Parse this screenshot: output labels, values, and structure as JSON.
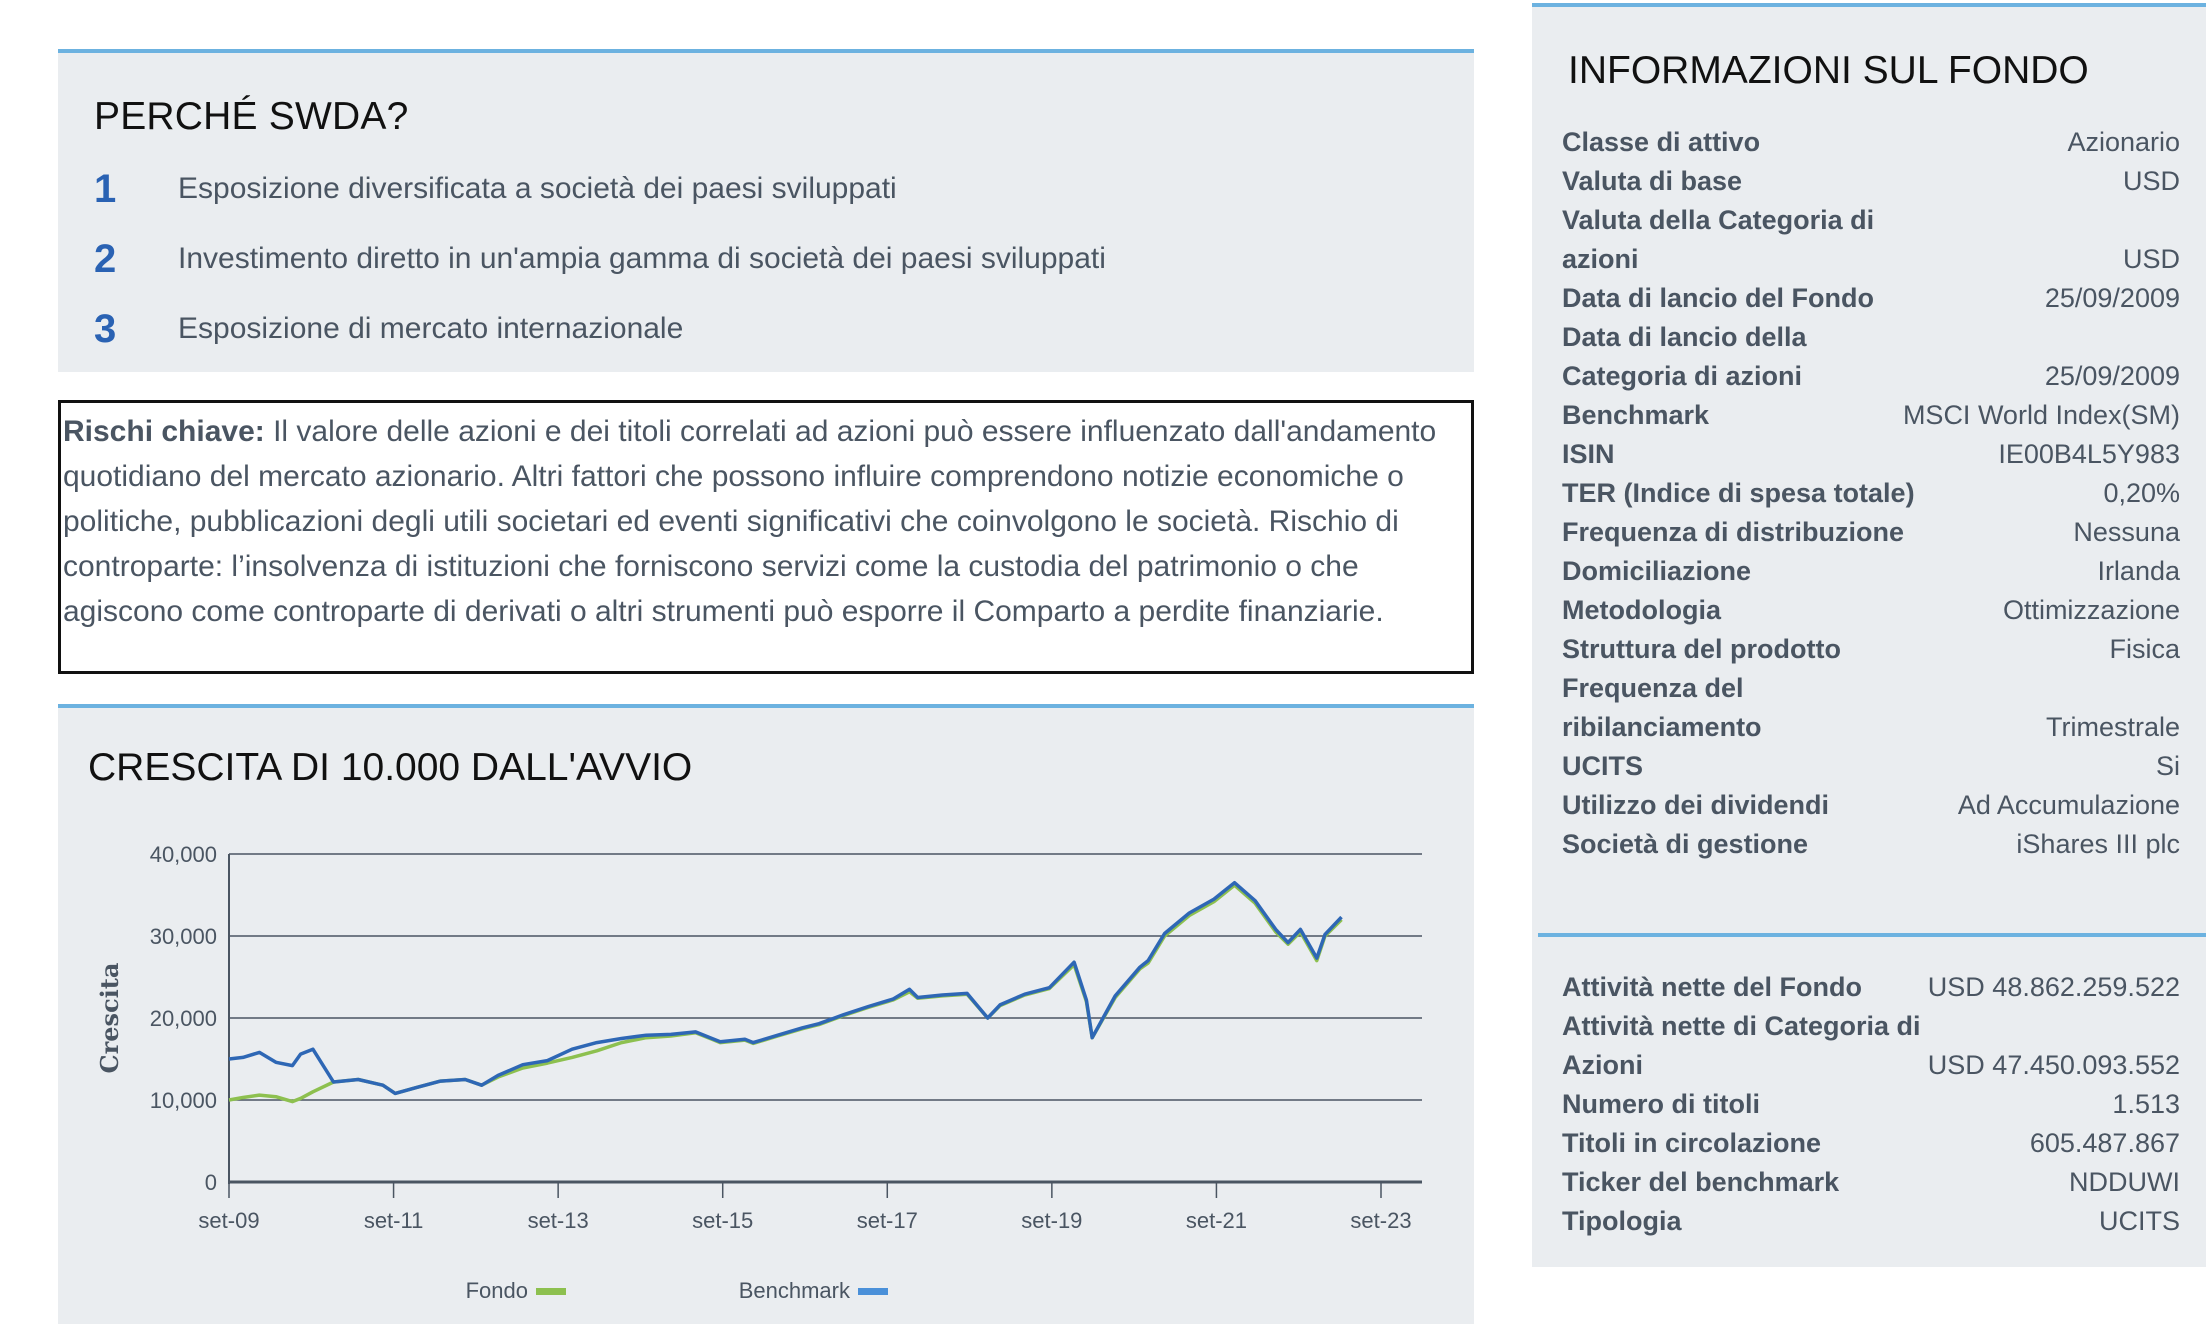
{
  "why": {
    "title": "PERCHÉ SWDA?",
    "items": [
      {
        "num": "1",
        "text": "Esposizione diversificata a società dei paesi sviluppati"
      },
      {
        "num": "2",
        "text": "Investimento diretto in un'ampia gamma di società dei paesi sviluppati"
      },
      {
        "num": "3",
        "text": "Esposizione di mercato internazionale"
      }
    ]
  },
  "risk": {
    "label": "Rischi chiave:",
    "text": " Il valore delle azioni e dei titoli correlati ad azioni può essere influenzato dall'andamento quotidiano del mercato azionario. Altri fattori che possono influire comprendono notizie economiche o politiche, pubblicazioni degli utili societari ed eventi significativi che coinvolgono le società. Rischio di controparte: l’insolvenza di istituzioni che forniscono servizi come la custodia del patrimonio o che agiscono come controparte di derivati o altri strumenti può esporre il Comparto a perdite finanziarie."
  },
  "growth": {
    "title": "CRESCITA DI 10.000 DALL'AVVIO"
  },
  "chart_data": {
    "type": "line",
    "title": "CRESCITA DI 10.000 DALL'AVVIO",
    "xlabel": "",
    "ylabel": "Crescita",
    "ylim": [
      0,
      40000
    ],
    "yticks": [
      "0",
      "10,000",
      "20,000",
      "30,000",
      "40,000"
    ],
    "xticks": [
      "set-09",
      "set-11",
      "set-13",
      "set-15",
      "set-17",
      "set-19",
      "set-21",
      "set-23"
    ],
    "grid": true,
    "legend_position": "bottom",
    "colors": {
      "Fondo": "#8dc04f",
      "Benchmark": "#2e67b5",
      "Benchmark_legend": "#4a90d9"
    },
    "x": [
      2009.73,
      2009.9,
      2010.1,
      2010.3,
      2010.5,
      2010.6,
      2010.75,
      2011.0,
      2011.3,
      2011.6,
      2011.75,
      2012.0,
      2012.3,
      2012.6,
      2012.8,
      2013.0,
      2013.3,
      2013.6,
      2013.9,
      2014.2,
      2014.5,
      2014.8,
      2015.1,
      2015.4,
      2015.6,
      2015.7,
      2016.0,
      2016.1,
      2016.4,
      2016.7,
      2016.9,
      2017.2,
      2017.5,
      2017.8,
      2018.0,
      2018.1,
      2018.4,
      2018.7,
      2018.95,
      2019.1,
      2019.4,
      2019.7,
      2020.0,
      2020.15,
      2020.22,
      2020.5,
      2020.8,
      2020.9,
      2021.1,
      2021.4,
      2021.7,
      2021.95,
      2022.2,
      2022.45,
      2022.6,
      2022.75,
      2022.95,
      2023.05,
      2023.25
    ],
    "series": [
      {
        "name": "Fondo",
        "values": [
          10000,
          10300,
          10600,
          10400,
          9800,
          10200,
          11000,
          12200,
          12500,
          11800,
          10800,
          11500,
          12300,
          12500,
          11800,
          12800,
          13900,
          14500,
          15200,
          16000,
          17000,
          17600,
          17800,
          18200,
          17400,
          17000,
          17300,
          16900,
          17800,
          18700,
          19200,
          20300,
          21300,
          22200,
          23200,
          22400,
          22700,
          22900,
          20000,
          21500,
          22800,
          23600,
          26500,
          22000,
          17600,
          22500,
          26000,
          26700,
          30000,
          32500,
          34200,
          36200,
          34000,
          30500,
          29000,
          30500,
          27000,
          30000,
          32000
        ]
      },
      {
        "name": "Benchmark",
        "values": [
          15000,
          15200,
          15800,
          14600,
          14200,
          15600,
          16200,
          12200,
          12500,
          11800,
          10800,
          11500,
          12300,
          12500,
          11800,
          13000,
          14300,
          14800,
          16200,
          17000,
          17500,
          17900,
          18000,
          18300,
          17500,
          17100,
          17400,
          17000,
          17900,
          18800,
          19300,
          20400,
          21400,
          22300,
          23500,
          22500,
          22800,
          23000,
          20000,
          21600,
          22900,
          23700,
          26800,
          22200,
          17600,
          22700,
          26200,
          27000,
          30300,
          32800,
          34500,
          36500,
          34300,
          30800,
          29200,
          30800,
          27300,
          30200,
          32300
        ]
      }
    ]
  },
  "chart": {
    "ylabel": "Crescita",
    "yticks": [
      "0",
      "10,000",
      "20,000",
      "30,000",
      "40,000"
    ],
    "xticks": [
      "set-09",
      "set-11",
      "set-13",
      "set-15",
      "set-17",
      "set-19",
      "set-21",
      "set-23"
    ],
    "legend": [
      {
        "label": "Fondo",
        "color": "#8dc04f"
      },
      {
        "label": "Benchmark",
        "color": "#4a90d9"
      }
    ]
  },
  "info": {
    "title": "INFORMAZIONI SUL FONDO",
    "facts": [
      {
        "label": "Classe di attivo",
        "value": "Azionario"
      },
      {
        "label": "Valuta di base",
        "value": "USD"
      },
      {
        "label": "Valuta della Categoria di azioni",
        "value": "USD"
      },
      {
        "label": "Data di lancio del Fondo",
        "value": "25/09/2009"
      },
      {
        "label": "Data di lancio della Categoria di azioni",
        "value": "25/09/2009"
      },
      {
        "label": "Benchmark",
        "value": "MSCI World Index(SM)"
      },
      {
        "label": "ISIN",
        "value": "IE00B4L5Y983"
      },
      {
        "label": "TER (Indice di spesa totale)",
        "value": "0,20%"
      },
      {
        "label": "Frequenza di distribuzione",
        "value": "Nessuna"
      },
      {
        "label": "Domiciliazione",
        "value": "Irlanda"
      },
      {
        "label": "Metodologia",
        "value": "Ottimizzazione"
      },
      {
        "label": "Struttura del prodotto",
        "value": "Fisica"
      },
      {
        "label": "Frequenza del ribilanciamento",
        "value": "Trimestrale"
      },
      {
        "label": "UCITS",
        "value": "Si"
      },
      {
        "label": "Utilizzo dei dividendi",
        "value": "Ad Accumulazione"
      },
      {
        "label": "Società di gestione",
        "value": "iShares III plc"
      }
    ],
    "facts2": [
      {
        "label": "Attività nette del Fondo",
        "value": "USD 48.862.259.522"
      },
      {
        "label": "Attività nette di Categoria di Azioni",
        "value": "USD 47.450.093.552"
      },
      {
        "label": "Numero di titoli",
        "value": "1.513"
      },
      {
        "label": "Titoli in circolazione",
        "value": "605.487.867"
      },
      {
        "label": "Ticker del benchmark",
        "value": "NDDUWI"
      },
      {
        "label": "Tipologia",
        "value": "UCITS"
      }
    ]
  },
  "colors": {
    "accent": "#6cb2e0",
    "panel_bg": "#eaedf0",
    "number_blue": "#2a62b3",
    "text": "#4a5562"
  }
}
